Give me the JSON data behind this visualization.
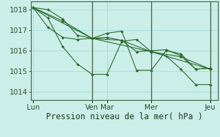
{
  "background_color": "#cceee8",
  "grid_color": "#aadddd",
  "line_color": "#2d6a2d",
  "xlabel": "Pression niveau de la mer( hPa )",
  "xlabel_fontsize": 8.5,
  "tick_fontsize": 7.5,
  "ylim": [
    1013.6,
    1018.4
  ],
  "yticks": [
    1014,
    1015,
    1016,
    1017,
    1018
  ],
  "xtick_positions": [
    0,
    4,
    5,
    8,
    12
  ],
  "xtick_labels": [
    "Lun",
    "Ven",
    "Mar",
    "Mer",
    "Jeu"
  ],
  "xlim": [
    -0.15,
    12.5
  ],
  "series": [
    {
      "x": [
        0,
        1,
        2,
        3,
        4,
        5,
        6,
        7,
        8,
        9,
        10,
        11,
        12
      ],
      "y": [
        1018.1,
        1017.15,
        1016.65,
        1016.55,
        1016.6,
        1016.65,
        1016.5,
        1015.95,
        1016.0,
        1016.05,
        1015.75,
        1015.1,
        1015.15
      ]
    },
    {
      "x": [
        0,
        1,
        2,
        3,
        4,
        5,
        6,
        7,
        8,
        9,
        10,
        11,
        12
      ],
      "y": [
        1018.1,
        1018.0,
        1017.55,
        1016.75,
        1016.6,
        1016.85,
        1016.95,
        1015.05,
        1015.05,
        1016.0,
        1015.85,
        1015.1,
        1015.15
      ]
    },
    {
      "x": [
        0,
        1,
        2,
        3,
        4,
        5,
        6,
        7,
        8,
        9,
        10,
        11,
        12
      ],
      "y": [
        1018.1,
        1017.6,
        1016.2,
        1015.35,
        1014.85,
        1014.85,
        1016.45,
        1016.55,
        1015.95,
        1015.75,
        1015.1,
        1014.35,
        1014.35
      ]
    },
    {
      "x": [
        0,
        2,
        4,
        6,
        8,
        10,
        12
      ],
      "y": [
        1018.1,
        1017.45,
        1016.6,
        1016.5,
        1015.95,
        1015.7,
        1015.1
      ]
    },
    {
      "x": [
        0,
        4,
        8,
        12
      ],
      "y": [
        1018.1,
        1016.6,
        1015.95,
        1015.1
      ]
    }
  ],
  "vlines_x": [
    4,
    8,
    12
  ],
  "marker": "D",
  "marker_size": 2.0,
  "linewidth": 0.85
}
